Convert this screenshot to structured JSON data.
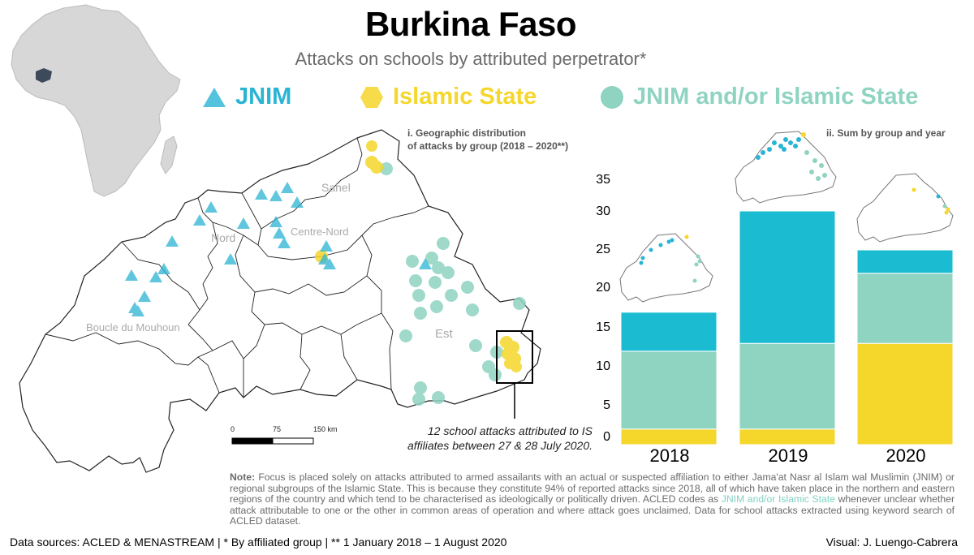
{
  "header": {
    "title": "Burkina Faso",
    "subtitle": "Attacks on schools by attributed perpetrator*"
  },
  "legend": [
    {
      "label": "JNIM",
      "color": "#2ab4d4",
      "shape": "triangle-icon"
    },
    {
      "label": "Islamic State",
      "color": "#f5d62a",
      "shape": "hexagon-icon"
    },
    {
      "label": "JNIM and/or Islamic State",
      "color": "#8fd3c1",
      "shape": "circle-icon"
    }
  ],
  "map_panel": {
    "label_line1": "i. Geographic distribution",
    "label_line2": "of attacks by group (2018 – 2020**)",
    "regions": [
      "Sahel",
      "Nord",
      "Centre-Nord",
      "Boucle du Mouhoun",
      "Est"
    ],
    "scale": {
      "t0": "0",
      "t1": "75",
      "t2": "150 km"
    },
    "callout_line1": "12 school attacks attributed to IS",
    "callout_line2": "affiliates between 27 & 28 July 2020."
  },
  "chart_panel": {
    "label": "ii. Sum by group and year"
  },
  "chart_data": {
    "type": "bar",
    "stacked": true,
    "categories": [
      "2018",
      "2019",
      "2020"
    ],
    "series": [
      {
        "name": "Islamic State",
        "color": "#f5d62a",
        "values": [
          2,
          2,
          13
        ]
      },
      {
        "name": "JNIM and/or Islamic State",
        "color": "#8fd3c1",
        "values": [
          10,
          11,
          9
        ]
      },
      {
        "name": "JNIM",
        "color": "#1bbcd2",
        "values": [
          5,
          17,
          3
        ]
      }
    ],
    "yticks": [
      "0",
      "5",
      "10",
      "15",
      "20",
      "25",
      "30",
      "35"
    ],
    "ylim": [
      0,
      35
    ]
  },
  "note": {
    "label": "Note:",
    "text1": "Focus is placed solely on attacks attributed to armed assailants with an actual or suspected affiliation to either Jama'at Nasr al Islam wal Muslimin (JNIM) or regional subgroups of the Islamic State. This is because they constitute 94% of reported attacks since 2018, all of which have taken place in the northern and eastern regions of the country and which tend to be characterised as ideologically or politically driven. ACLED codes as",
    "accent": "JNIM and/or Islamic State",
    "text2": "whenever unclear whether attack attributable to one or the other in common areas of operation and where attack goes unclaimed. Data for school attacks extracted using keyword search of ACLED dataset."
  },
  "footer": {
    "sources": "Data sources: ACLED & MENASTREAM | * By affiliated group | ** 1 January 2018 – 1 August 2020",
    "credit": "Visual: J. Luengo-Cabrera"
  }
}
